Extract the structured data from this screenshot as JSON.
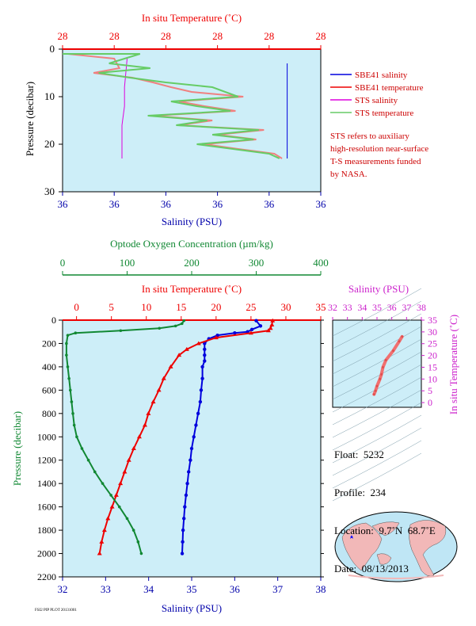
{
  "colors": {
    "salinity": "#0000dd",
    "temperature": "#ee0000",
    "oxygen": "#118833",
    "sts_salinity": "#dd00dd",
    "sts_temperature": "#66cc66",
    "inset": "#cc22cc",
    "panel_bg": "#cdeef8"
  },
  "top_panel": {
    "top_axis_title": "In situ Temperature (˚C)",
    "top_ticks": [
      "28",
      "28",
      "28",
      "28",
      "28",
      "28"
    ],
    "bottom_axis_title": "Salinity (PSU)",
    "bottom_ticks": [
      "36",
      "36",
      "36",
      "36",
      "36",
      "36"
    ],
    "y_axis_title": "Pressure (decibar)",
    "y_ticks": [
      "0",
      "10",
      "20",
      "30"
    ]
  },
  "legend": [
    {
      "label": "SBE41 salinity",
      "color": "#0000dd"
    },
    {
      "label": "SBE41 temperature",
      "color": "#ee0000"
    },
    {
      "label": "STS salinity",
      "color": "#dd00dd"
    },
    {
      "label": "STS temperature",
      "color": "#66cc66"
    }
  ],
  "note": [
    "STS refers to auxiliary",
    "high-resolution near-surface",
    "T-S measurements funded",
    "by NASA."
  ],
  "main_panel": {
    "oxygen_axis_title": "Optode Oxygen Concentration (µm/kg)",
    "oxygen_ticks": [
      "0",
      "100",
      "200",
      "300",
      "400"
    ],
    "temp_axis_title": "In situ Temperature (˚C)",
    "temp_ticks": [
      "0",
      "5",
      "10",
      "15",
      "20",
      "25",
      "30",
      "35"
    ],
    "sal_axis_title": "Salinity (PSU)",
    "sal_ticks": [
      "32",
      "33",
      "34",
      "35",
      "36",
      "37",
      "38"
    ],
    "y_axis_title": "Pressure (decibar)",
    "y_ticks": [
      "0",
      "200",
      "400",
      "600",
      "800",
      "1000",
      "1200",
      "1400",
      "1600",
      "1800",
      "2000",
      "2200"
    ]
  },
  "inset": {
    "x_axis_title": "Salinity (PSU)",
    "x_ticks": [
      "32",
      "33",
      "34",
      "35",
      "36",
      "37",
      "38"
    ],
    "y_axis_title": "In situ Temperature (˚C)",
    "y_ticks": [
      "0",
      "5",
      "10",
      "15",
      "20",
      "25",
      "30",
      "35"
    ]
  },
  "info": {
    "float_line": "Float:  5232",
    "profile_line": "Profile:  234",
    "location_line": "Location:  9.7˚N  68.7˚E",
    "date_line": "Date:  08/13/2013"
  },
  "footer": "FSI2 PIP PLOT 20131001",
  "chart_data": [
    {
      "type": "line",
      "id": "main-profile",
      "y_axis": {
        "label": "Pressure (decibar)",
        "range": [
          2200,
          0
        ]
      },
      "series": [
        {
          "name": "Salinity (PSU)",
          "axis": "salinity",
          "range": [
            32,
            38
          ],
          "points": [
            [
              36.5,
              5
            ],
            [
              36.6,
              50
            ],
            [
              36.4,
              80
            ],
            [
              36.3,
              100
            ],
            [
              36.0,
              110
            ],
            [
              35.6,
              130
            ],
            [
              35.4,
              160
            ],
            [
              35.3,
              200
            ],
            [
              35.3,
              250
            ],
            [
              35.3,
              300
            ],
            [
              35.3,
              350
            ],
            [
              35.25,
              400
            ],
            [
              35.25,
              500
            ],
            [
              35.22,
              600
            ],
            [
              35.2,
              700
            ],
            [
              35.15,
              800
            ],
            [
              35.1,
              900
            ],
            [
              35.05,
              1000
            ],
            [
              35.0,
              1100
            ],
            [
              34.97,
              1200
            ],
            [
              34.93,
              1300
            ],
            [
              34.9,
              1400
            ],
            [
              34.87,
              1500
            ],
            [
              34.84,
              1600
            ],
            [
              34.82,
              1700
            ],
            [
              34.8,
              1800
            ],
            [
              34.79,
              1900
            ],
            [
              34.78,
              2000
            ]
          ]
        },
        {
          "name": "In situ Temperature (˚C)",
          "axis": "temperature",
          "range": [
            -2,
            35
          ],
          "points": [
            [
              28.1,
              5
            ],
            [
              28.0,
              40
            ],
            [
              27.8,
              70
            ],
            [
              27.5,
              90
            ],
            [
              25.0,
              110
            ],
            [
              20.0,
              150
            ],
            [
              17.5,
              200
            ],
            [
              15.8,
              250
            ],
            [
              14.7,
              300
            ],
            [
              13.5,
              400
            ],
            [
              12.5,
              500
            ],
            [
              11.8,
              600
            ],
            [
              11.0,
              700
            ],
            [
              10.3,
              800
            ],
            [
              9.8,
              900
            ],
            [
              9.0,
              1000
            ],
            [
              8.2,
              1100
            ],
            [
              7.5,
              1200
            ],
            [
              6.9,
              1300
            ],
            [
              6.3,
              1400
            ],
            [
              5.7,
              1500
            ],
            [
              5.1,
              1600
            ],
            [
              4.5,
              1700
            ],
            [
              4.0,
              1800
            ],
            [
              3.6,
              1900
            ],
            [
              3.3,
              2000
            ]
          ]
        },
        {
          "name": "Optode Oxygen Concentration (µm/kg)",
          "axis": "oxygen",
          "range": [
            0,
            400
          ],
          "points": [
            [
              188,
              5
            ],
            [
              185,
              30
            ],
            [
              175,
              50
            ],
            [
              150,
              70
            ],
            [
              90,
              90
            ],
            [
              20,
              110
            ],
            [
              8,
              130
            ],
            [
              6,
              200
            ],
            [
              6,
              300
            ],
            [
              8,
              400
            ],
            [
              10,
              500
            ],
            [
              12,
              600
            ],
            [
              14,
              700
            ],
            [
              16,
              800
            ],
            [
              18,
              900
            ],
            [
              22,
              1000
            ],
            [
              30,
              1100
            ],
            [
              40,
              1200
            ],
            [
              50,
              1300
            ],
            [
              62,
              1400
            ],
            [
              75,
              1500
            ],
            [
              88,
              1600
            ],
            [
              100,
              1700
            ],
            [
              110,
              1800
            ],
            [
              117,
              1900
            ],
            [
              122,
              2000
            ]
          ]
        }
      ]
    },
    {
      "type": "line",
      "id": "near-surface-profile",
      "x_range": [
        0,
        100
      ],
      "y_range": [
        30,
        0
      ],
      "series": [
        {
          "name": "SBE41 salinity",
          "points": [
            [
              87,
              3
            ],
            [
              87,
              8
            ],
            [
              87,
              12
            ],
            [
              87,
              16
            ],
            [
              87,
              20
            ],
            [
              87,
              23
            ]
          ]
        },
        {
          "name": "SBE41 temperature",
          "points": [
            [
              2,
              1
            ],
            [
              20,
              2
            ],
            [
              22,
              4
            ],
            [
              12,
              5
            ],
            [
              27,
              6
            ],
            [
              35,
              7
            ],
            [
              42,
              8
            ],
            [
              50,
              9
            ],
            [
              70,
              10
            ],
            [
              45,
              11
            ],
            [
              55,
              12
            ],
            [
              67,
              13
            ],
            [
              35,
              14
            ],
            [
              58,
              15
            ],
            [
              45,
              16
            ],
            [
              78,
              17
            ],
            [
              60,
              18
            ],
            [
              75,
              19
            ],
            [
              55,
              20
            ],
            [
              68,
              21
            ],
            [
              82,
              22
            ],
            [
              85,
              23
            ]
          ]
        },
        {
          "name": "STS salinity",
          "points": [
            [
              25,
              2
            ],
            [
              24,
              8
            ],
            [
              24,
              12
            ],
            [
              23,
              16
            ],
            [
              23,
              20
            ],
            [
              23,
              23
            ]
          ]
        },
        {
          "name": "STS temperature",
          "points": [
            [
              0,
              1
            ],
            [
              30,
              1
            ],
            [
              18,
              3
            ],
            [
              34,
              4
            ],
            [
              14,
              5
            ],
            [
              26,
              6
            ],
            [
              40,
              7
            ],
            [
              58,
              8
            ],
            [
              68,
              10
            ],
            [
              42,
              11
            ],
            [
              52,
              12
            ],
            [
              65,
              13
            ],
            [
              33,
              14
            ],
            [
              56,
              15
            ],
            [
              44,
              16
            ],
            [
              76,
              17
            ],
            [
              58,
              18
            ],
            [
              74,
              19
            ],
            [
              52,
              20
            ],
            [
              66,
              21
            ],
            [
              80,
              22
            ],
            [
              84,
              23
            ]
          ]
        }
      ]
    },
    {
      "type": "scatter",
      "id": "ts-inset",
      "x_range": [
        32,
        38
      ],
      "y_range": [
        -2,
        35
      ],
      "points": [
        [
          36.7,
          28
        ],
        [
          36.5,
          26
        ],
        [
          36.1,
          22
        ],
        [
          35.6,
          18
        ],
        [
          35.4,
          15
        ],
        [
          35.3,
          12
        ],
        [
          35.2,
          10
        ],
        [
          35.0,
          7
        ],
        [
          34.9,
          5
        ],
        [
          34.8,
          3.5
        ]
      ]
    }
  ]
}
